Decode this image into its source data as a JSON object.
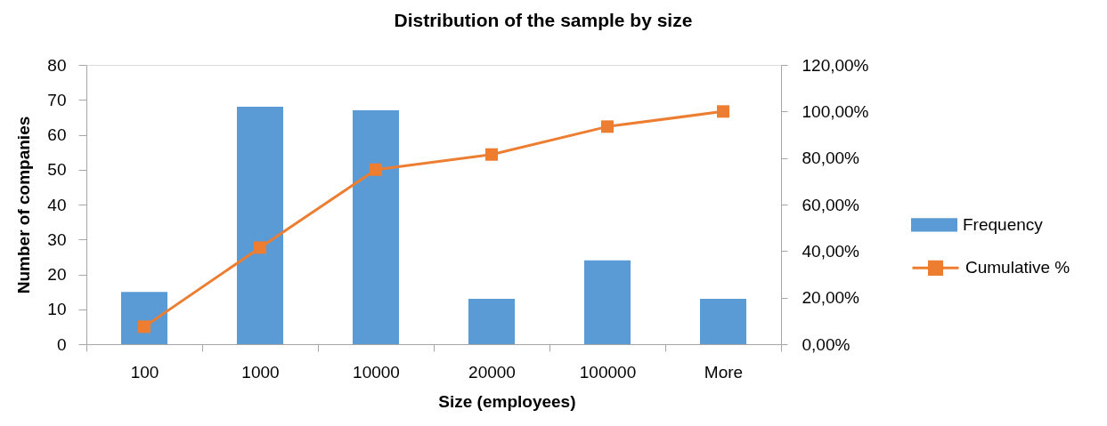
{
  "chart_data": {
    "type": "bar",
    "title": "Distribution of the sample by size",
    "xlabel": "Size (employees)",
    "ylabel": "Number of companies",
    "categories": [
      "100",
      "1000",
      "10000",
      "20000",
      "100000",
      "More"
    ],
    "series": [
      {
        "name": "Frequency",
        "color": "#5b9bd5",
        "values": [
          15,
          68,
          67,
          13,
          24,
          13
        ]
      },
      {
        "name": "Cumulative %",
        "type": "line",
        "axis": "y2",
        "color": "#ed7d31",
        "values": [
          7.5,
          41.5,
          75,
          81.5,
          93.5,
          100
        ]
      }
    ],
    "ylim": [
      0,
      80
    ],
    "yticks": [
      0,
      10,
      20,
      30,
      40,
      50,
      60,
      70,
      80
    ],
    "y2lim": [
      0,
      120
    ],
    "y2ticks": [
      {
        "value": 0,
        "label": "0,00%"
      },
      {
        "value": 20,
        "label": "20,00%"
      },
      {
        "value": 40,
        "label": "40,00%"
      },
      {
        "value": 60,
        "label": "60,00%"
      },
      {
        "value": 80,
        "label": "80,00%"
      },
      {
        "value": 100,
        "label": "100,00%"
      },
      {
        "value": 120,
        "label": "120,00%"
      }
    ],
    "grid": false,
    "legend": "right",
    "marker": "square"
  }
}
